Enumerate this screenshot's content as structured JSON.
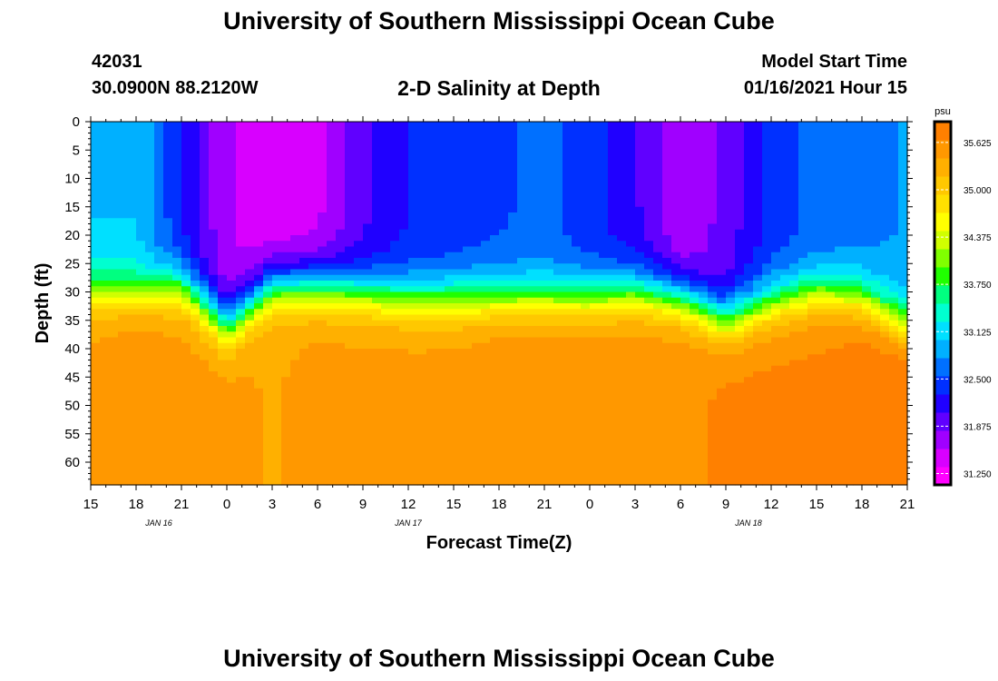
{
  "header": {
    "title_top": "University of Southern Mississippi Ocean Cube",
    "title_bottom": "University of Southern Mississippi Ocean Cube",
    "station_id": "42031",
    "station_coords": "30.0900N 88.2120W",
    "model_start_label": "Model Start Time",
    "model_start_value": "01/16/2021 Hour 15"
  },
  "colors": {
    "palette": [
      "#ff00ff",
      "#d800ff",
      "#a000ff",
      "#6000ff",
      "#2000ff",
      "#0030ff",
      "#0070ff",
      "#00b0ff",
      "#00e0ff",
      "#00ffd0",
      "#00ff80",
      "#20ff00",
      "#80ff00",
      "#d0ff00",
      "#ffff00",
      "#ffe000",
      "#ffc800",
      "#ffb000",
      "#ff9800",
      "#ff8000"
    ]
  },
  "chart_data": {
    "type": "heatmap",
    "title": "2-D Salinity at Depth",
    "xlabel": "Forecast Time(Z)",
    "ylabel": "Depth (ft)",
    "x_tick_labels": [
      "15",
      "18",
      "21",
      "0",
      "3",
      "6",
      "9",
      "12",
      "15",
      "18",
      "21",
      "0",
      "3",
      "6",
      "9",
      "12",
      "15",
      "18",
      "21"
    ],
    "day_labels": [
      {
        "text": "JAN 16",
        "tick": 1.5
      },
      {
        "text": "JAN 17",
        "tick": 7
      },
      {
        "text": "JAN 18",
        "tick": 14.5
      }
    ],
    "y_tick_labels": [
      "0",
      "5",
      "10",
      "15",
      "20",
      "25",
      "30",
      "35",
      "40",
      "45",
      "50",
      "55",
      "60"
    ],
    "ylim": [
      0,
      64
    ],
    "colorbar": {
      "unit": "psu",
      "min": 31.1,
      "max": 35.9,
      "tick_labels": [
        "35.625",
        "35.000",
        "34.375",
        "33.750",
        "33.125",
        "32.500",
        "31.875",
        "31.250"
      ],
      "tick_values": [
        35.625,
        35.0,
        34.375,
        33.75,
        33.125,
        32.5,
        31.875,
        31.25
      ]
    },
    "time_hours": [
      0,
      3,
      6,
      9,
      12,
      15,
      18,
      21,
      24,
      27,
      30,
      33,
      36,
      39,
      42,
      45,
      48,
      51,
      54
    ],
    "halocline_depth_ft": [
      30,
      30,
      29,
      36,
      29,
      29,
      30,
      31,
      31,
      31,
      31,
      31,
      30,
      31,
      35,
      32,
      30,
      31,
      36
    ],
    "surface_salinity_psu": [
      33.0,
      33.0,
      32.3,
      31.6,
      31.4,
      31.5,
      32.0,
      32.3,
      32.4,
      32.5,
      32.6,
      32.4,
      32.1,
      31.6,
      31.9,
      32.4,
      32.6,
      32.7,
      32.8
    ],
    "bottom_salinity_psu": [
      35.5,
      35.6,
      35.5,
      35.5,
      35.4,
      35.5,
      35.5,
      35.5,
      35.5,
      35.6,
      35.6,
      35.6,
      35.6,
      35.6,
      35.7,
      35.7,
      35.7,
      35.8,
      35.9
    ]
  }
}
